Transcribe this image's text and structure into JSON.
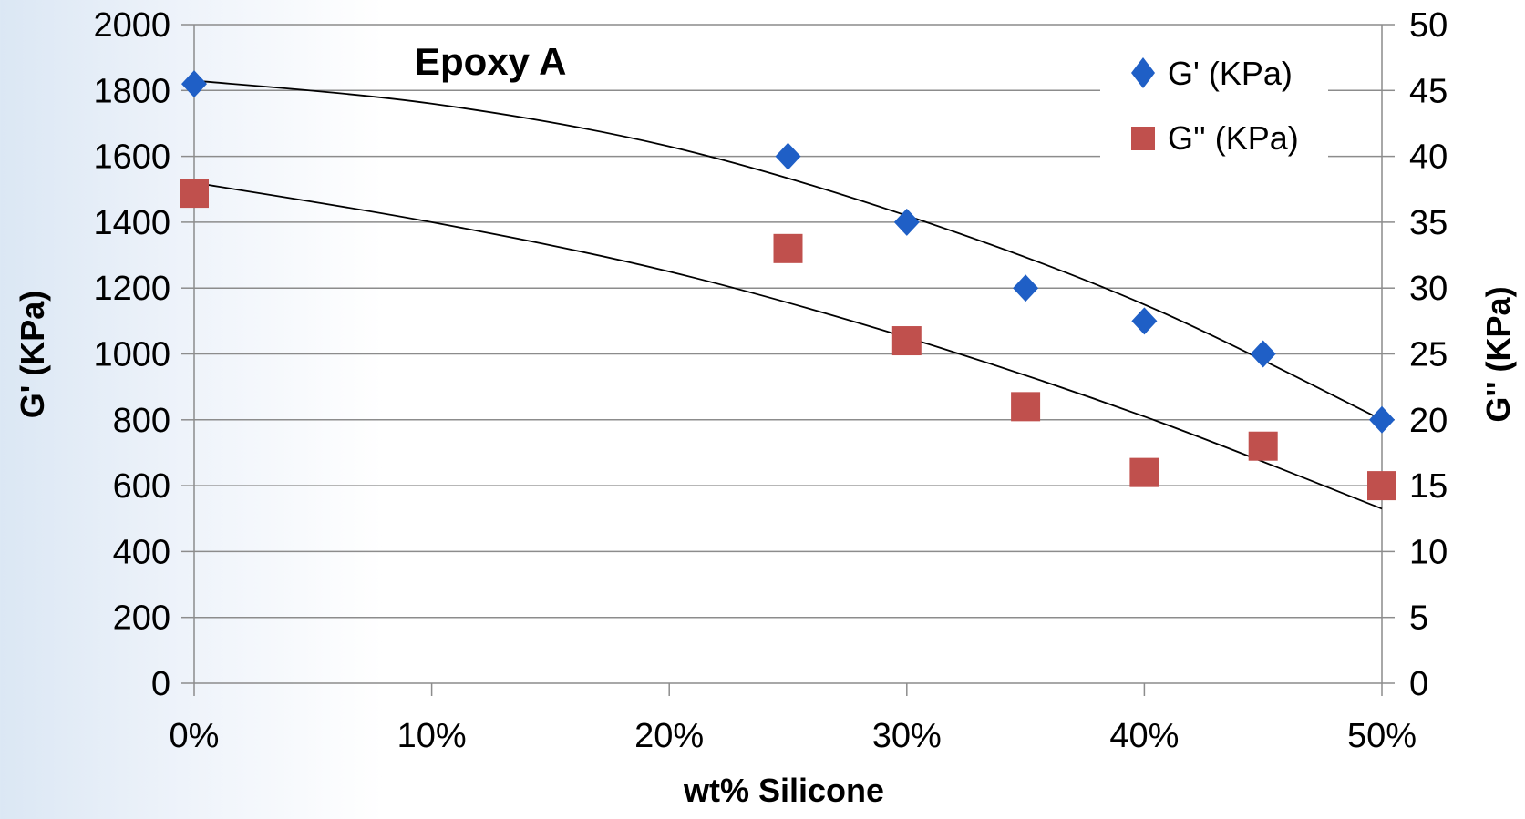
{
  "chart_data": {
    "type": "scatter",
    "title": "Epoxy A",
    "xlabel": "wt% Silicone",
    "ylabel": "G' (KPa)",
    "y2label": "G'' (KPa)",
    "x_ticks": [
      "0%",
      "10%",
      "20%",
      "30%",
      "40%",
      "50%"
    ],
    "xlim": [
      0,
      0.5
    ],
    "ylim": [
      0,
      2000
    ],
    "y2lim": [
      0,
      50
    ],
    "y_ticks": [
      "0",
      "200",
      "400",
      "600",
      "800",
      "1000",
      "1200",
      "1400",
      "1600",
      "1800",
      "2000"
    ],
    "y2_ticks": [
      "0",
      "5",
      "10",
      "15",
      "20",
      "25",
      "30",
      "35",
      "40",
      "45",
      "50"
    ],
    "grid": true,
    "legend_position": "top-right",
    "series": [
      {
        "name": "G' (KPa)",
        "axis": "left",
        "marker": "diamond",
        "color": "#1f5fc6",
        "x": [
          0,
          0.25,
          0.3,
          0.35,
          0.4,
          0.45,
          0.5
        ],
        "y": [
          1820,
          1600,
          1400,
          1200,
          1100,
          1000,
          800
        ]
      },
      {
        "name": "G'' (KPa)",
        "axis": "right",
        "marker": "square",
        "color": "#c0504d",
        "x": [
          0,
          0.25,
          0.3,
          0.35,
          0.4,
          0.45,
          0.5
        ],
        "y": [
          37.2,
          33.0,
          26.0,
          21.0,
          16.0,
          18.0,
          15.0
        ]
      }
    ],
    "trendlines": [
      {
        "axis": "left",
        "type": "polynomial",
        "x": [
          0,
          0.1,
          0.2,
          0.3,
          0.4,
          0.5
        ],
        "y": [
          1830,
          1760,
          1630,
          1420,
          1150,
          800
        ]
      },
      {
        "axis": "left",
        "type": "polynomial",
        "x": [
          0,
          0.1,
          0.2,
          0.3,
          0.4,
          0.5
        ],
        "y": [
          1520,
          1400,
          1250,
          1050,
          810,
          530
        ]
      }
    ]
  }
}
